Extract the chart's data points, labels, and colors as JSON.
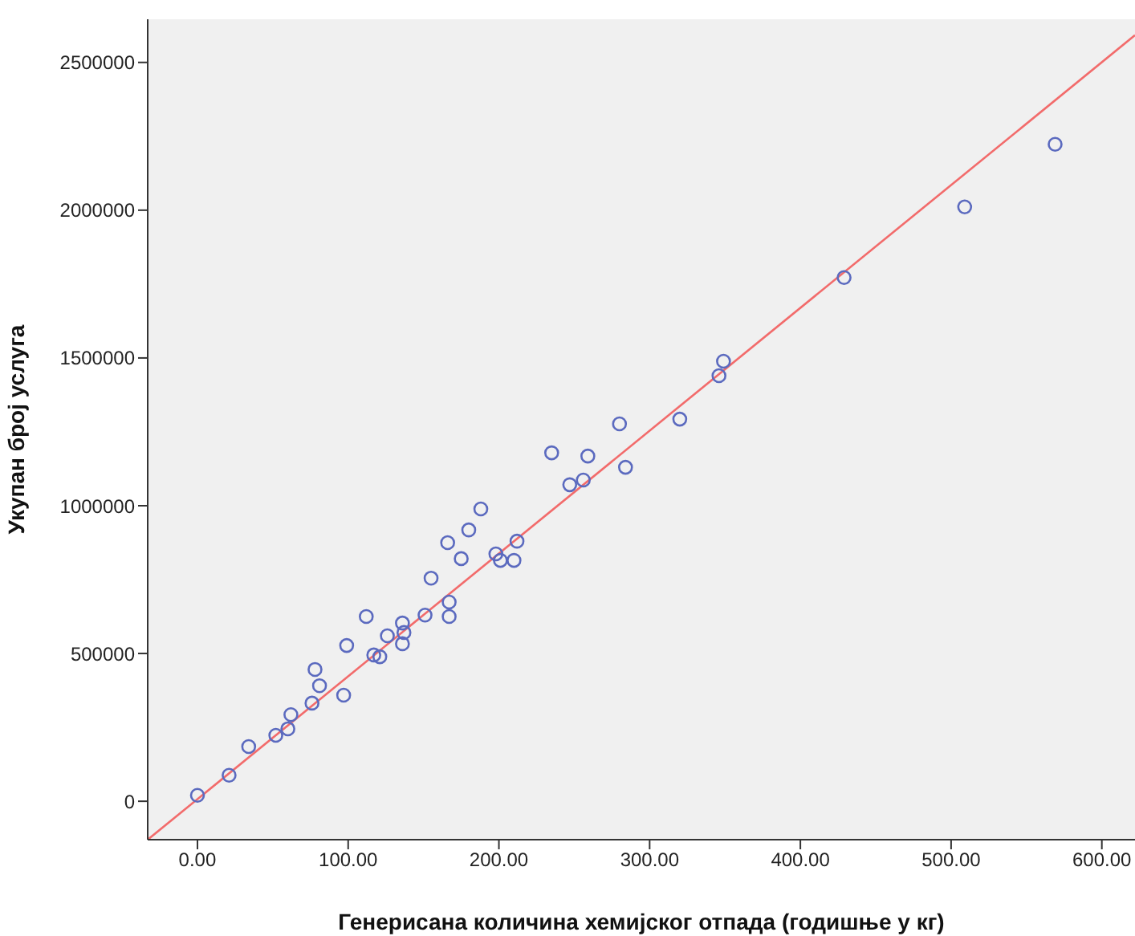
{
  "chart_data": {
    "type": "scatter",
    "xlabel": "Генерисана количина хемијског отпада (годишње у кг)",
    "ylabel": "Укупан број услуга",
    "xlim": [
      -33,
      622
    ],
    "ylim": [
      -130000,
      2646000
    ],
    "xticks": [
      {
        "value": 0,
        "label": "0.00"
      },
      {
        "value": 100,
        "label": "100.00"
      },
      {
        "value": 200,
        "label": "200.00"
      },
      {
        "value": 300,
        "label": "300.00"
      },
      {
        "value": 400,
        "label": "400.00"
      },
      {
        "value": 500,
        "label": "500.00"
      },
      {
        "value": 600,
        "label": "600.00"
      }
    ],
    "yticks": [
      0,
      500000,
      1000000,
      1500000,
      2000000,
      2500000
    ],
    "grid": false,
    "marker": "circle",
    "series": [
      {
        "color": "#5b6abf",
        "x": [
          0,
          21,
          34,
          52,
          60,
          62,
          76,
          78,
          81,
          97,
          99,
          112,
          117,
          121,
          126,
          136,
          137,
          136,
          151,
          155,
          166,
          167,
          167,
          175,
          180,
          188,
          198,
          201,
          210,
          212,
          235,
          247,
          256,
          259,
          280,
          284,
          320,
          346,
          349,
          429,
          509,
          569
        ],
        "values": [
          20000,
          88000,
          185000,
          223000,
          245000,
          293000,
          332000,
          446000,
          391000,
          359000,
          527000,
          625000,
          495000,
          489000,
          560000,
          603000,
          571000,
          533000,
          630000,
          755000,
          875000,
          625000,
          674000,
          821000,
          918000,
          989000,
          837000,
          815000,
          815000,
          880000,
          1179000,
          1071000,
          1087000,
          1168000,
          1277000,
          1130000,
          1293000,
          1440000,
          1489000,
          1772000,
          2011000,
          2223000
        ]
      },
      {
        "type": "line",
        "color": "#f26b6b",
        "marker": "none",
        "x": [
          -33,
          622
        ],
        "values": [
          -130000,
          2592000
        ]
      }
    ]
  }
}
